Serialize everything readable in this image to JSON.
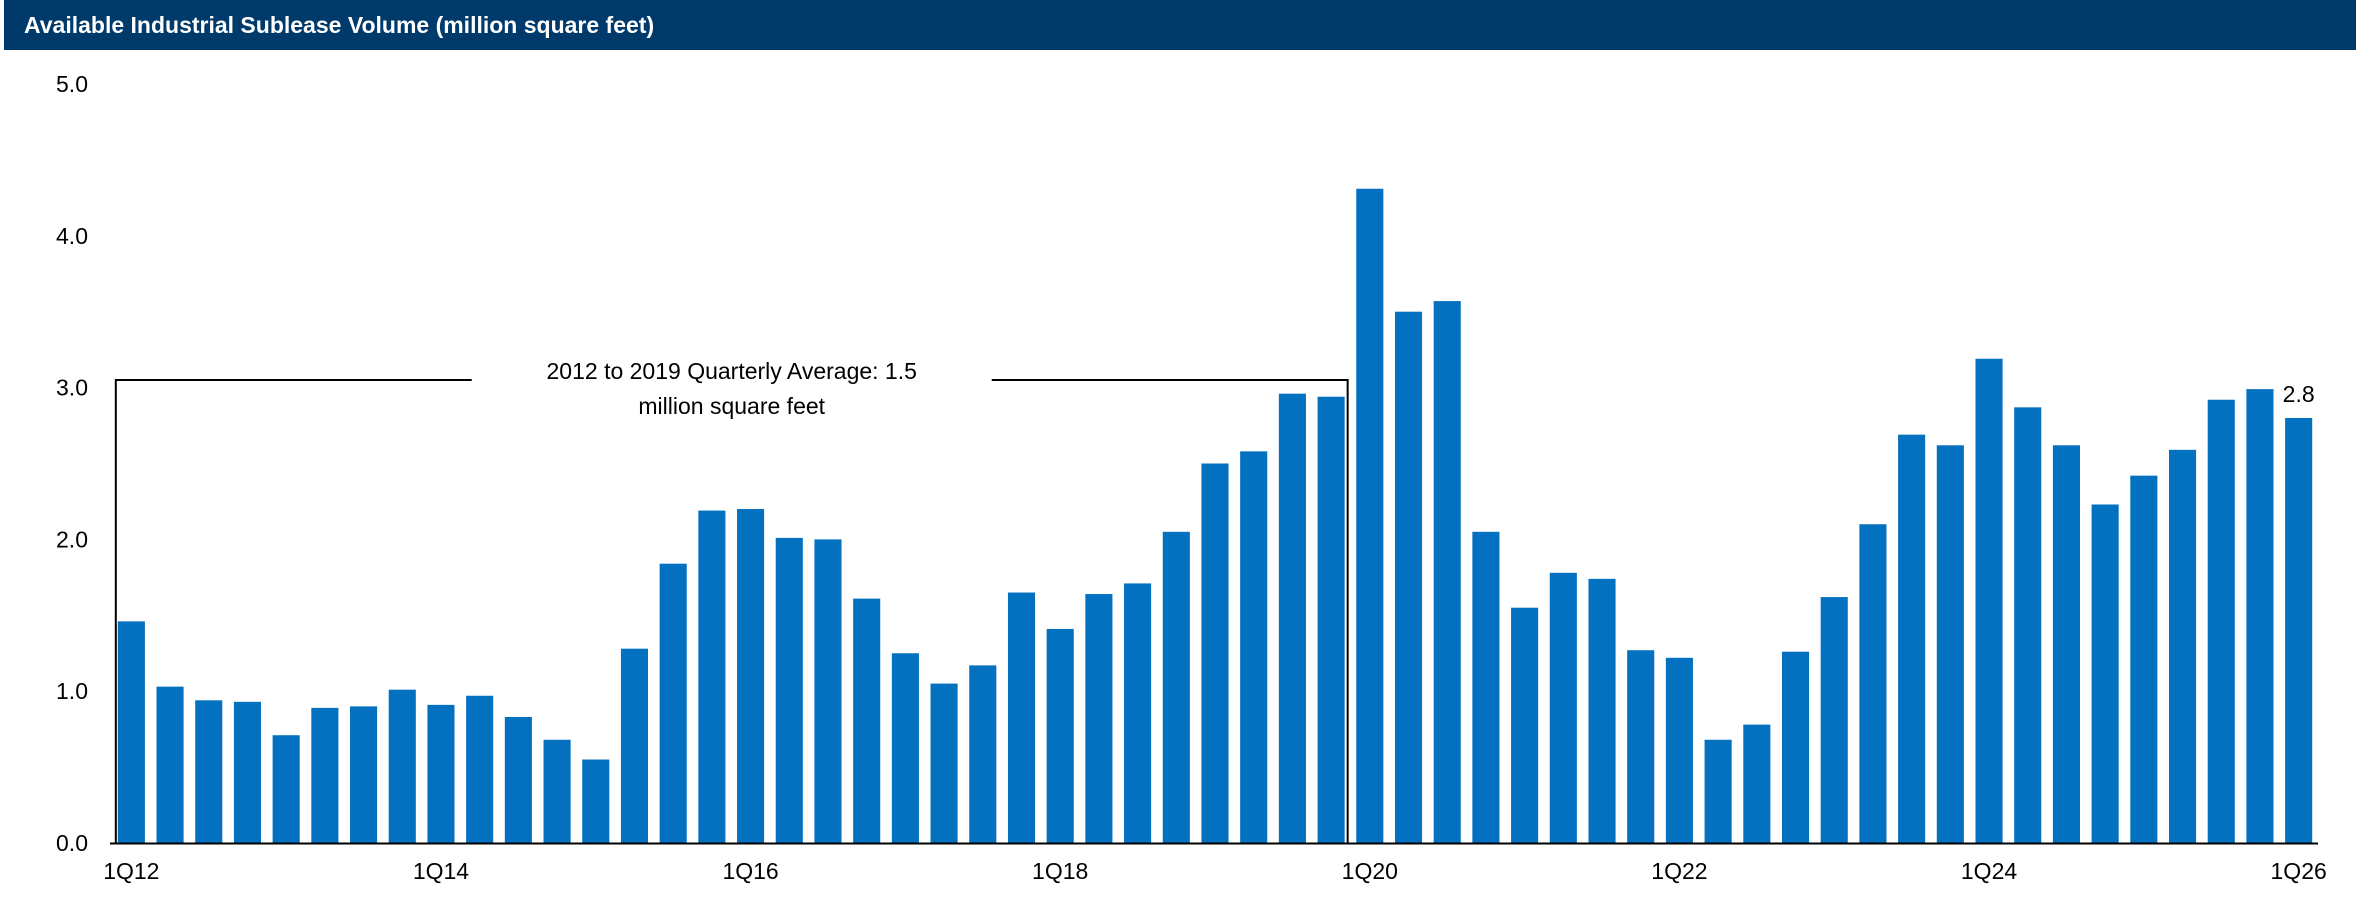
{
  "colors": {
    "header_bg": "#003a6b",
    "header_text": "#ffffff",
    "bar": "#0470c0",
    "axis": "#000000"
  },
  "chart_data": {
    "type": "bar",
    "title": "Available Industrial Sublease Volume (million square feet)",
    "xlabel": "",
    "ylabel": "",
    "ylim": [
      0,
      5
    ],
    "yticks": [
      "0.0",
      "1.0",
      "2.0",
      "3.0",
      "4.0",
      "5.0"
    ],
    "xtick_labels": [
      "1Q12",
      "1Q14",
      "1Q16",
      "1Q18",
      "1Q20",
      "1Q22",
      "1Q24",
      "1Q26"
    ],
    "grid": false,
    "categories": [
      "1Q12",
      "2Q12",
      "3Q12",
      "4Q12",
      "1Q13",
      "2Q13",
      "3Q13",
      "4Q13",
      "1Q14",
      "2Q14",
      "3Q14",
      "4Q14",
      "1Q15",
      "2Q15",
      "3Q15",
      "4Q15",
      "1Q16",
      "2Q16",
      "3Q16",
      "4Q16",
      "1Q17",
      "2Q17",
      "3Q17",
      "4Q17",
      "1Q18",
      "2Q18",
      "3Q18",
      "4Q18",
      "1Q19",
      "2Q19",
      "3Q19",
      "4Q19",
      "1Q20",
      "2Q20",
      "3Q20",
      "4Q20",
      "1Q21",
      "2Q21",
      "3Q21",
      "4Q21",
      "1Q22",
      "2Q22",
      "3Q22",
      "4Q22",
      "1Q23",
      "2Q23",
      "3Q23",
      "4Q23",
      "1Q24",
      "2Q24",
      "3Q24",
      "4Q24",
      "1Q25",
      "2Q25",
      "3Q25",
      "4Q25",
      "1Q26"
    ],
    "values": [
      1.46,
      1.03,
      0.94,
      0.93,
      0.71,
      0.89,
      0.9,
      1.01,
      0.91,
      0.97,
      0.83,
      0.68,
      0.55,
      1.28,
      1.84,
      2.19,
      2.2,
      2.01,
      2.0,
      1.61,
      1.25,
      1.05,
      1.17,
      1.65,
      1.41,
      1.64,
      1.71,
      2.05,
      2.5,
      2.58,
      2.96,
      2.94,
      4.31,
      3.5,
      3.57,
      2.05,
      1.55,
      1.78,
      1.74,
      1.27,
      1.22,
      0.68,
      0.78,
      1.26,
      1.62,
      2.1,
      2.69,
      2.62,
      3.19,
      2.87,
      2.62,
      2.23,
      2.42,
      2.59,
      2.92,
      2.99,
      2.8
    ],
    "data_labels": {
      "last": "2.8"
    },
    "annotation": {
      "text_line1": "2012 to 2019 Quarterly Average: 1.5",
      "text_line2": "million square feet",
      "bracket_level": 3.05,
      "from": "1Q12",
      "to": "4Q19"
    }
  }
}
